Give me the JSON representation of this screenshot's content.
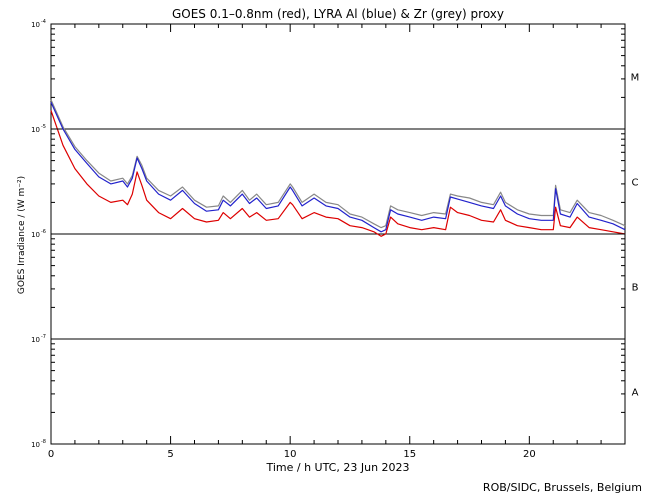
{
  "chart_data": {
    "type": "line",
    "title": "GOES 0.1–0.8nm (red), LYRA Al (blue) & Zr (grey) proxy",
    "xlabel": "Time / h UTC, 23 Jun 2023",
    "ylabel": "GOES Irradiance / (W m⁻²)",
    "xlim": [
      0,
      24
    ],
    "ylim": [
      1e-08,
      0.0001
    ],
    "yscale": "log",
    "x_ticks": [
      0,
      5,
      10,
      15,
      20
    ],
    "y_ticks": [
      {
        "value": 1e-08,
        "label": "10",
        "exp": "-8"
      },
      {
        "value": 1e-07,
        "label": "10",
        "exp": "-7"
      },
      {
        "value": 1e-06,
        "label": "10",
        "exp": "-6"
      },
      {
        "value": 1e-05,
        "label": "10",
        "exp": "-5"
      },
      {
        "value": 0.0001,
        "label": "10",
        "exp": "-4"
      }
    ],
    "flare_class_lines": [
      1e-07,
      1e-06,
      1e-05
    ],
    "flare_classes": [
      {
        "label": "A",
        "value": 3.16e-08
      },
      {
        "label": "B",
        "value": 3.16e-07
      },
      {
        "label": "C",
        "value": 3.16e-06
      },
      {
        "label": "M",
        "value": 3.16e-05
      }
    ],
    "series": [
      {
        "name": "LYRA Zr proxy",
        "color": "#888888",
        "x": [
          0,
          0.5,
          1,
          1.5,
          2,
          2.5,
          3,
          3.2,
          3.4,
          3.6,
          3.8,
          4,
          4.5,
          5,
          5.5,
          6,
          6.5,
          7,
          7.2,
          7.5,
          8,
          8.3,
          8.6,
          9,
          9.5,
          10,
          10.1,
          10.5,
          11,
          11.5,
          12,
          12.5,
          13,
          13.5,
          13.8,
          14,
          14.2,
          14.5,
          15,
          15.5,
          16,
          16.5,
          16.7,
          17,
          17.5,
          18,
          18.5,
          18.8,
          19,
          19.5,
          20,
          20.5,
          21,
          21.1,
          21.3,
          21.7,
          22,
          22.5,
          23,
          23.5,
          24
        ],
        "values": [
          1.9e-05,
          1.05e-05,
          6.8e-06,
          5e-06,
          3.8e-06,
          3.2e-06,
          3.4e-06,
          3e-06,
          3.6e-06,
          5.5e-06,
          4.5e-06,
          3.4e-06,
          2.6e-06,
          2.3e-06,
          2.8e-06,
          2.1e-06,
          1.8e-06,
          1.85e-06,
          2.3e-06,
          2e-06,
          2.6e-06,
          2.1e-06,
          2.4e-06,
          1.9e-06,
          2e-06,
          3e-06,
          2.8e-06,
          2e-06,
          2.4e-06,
          2e-06,
          1.9e-06,
          1.55e-06,
          1.45e-06,
          1.25e-06,
          1.15e-06,
          1.2e-06,
          1.85e-06,
          1.7e-06,
          1.6e-06,
          1.5e-06,
          1.6e-06,
          1.55e-06,
          2.4e-06,
          2.3e-06,
          2.2e-06,
          2e-06,
          1.9e-06,
          2.5e-06,
          2e-06,
          1.7e-06,
          1.55e-06,
          1.5e-06,
          1.5e-06,
          2.9e-06,
          1.7e-06,
          1.6e-06,
          2.1e-06,
          1.6e-06,
          1.5e-06,
          1.35e-06,
          1.2e-06
        ]
      },
      {
        "name": "LYRA Al proxy",
        "color": "#2222cc",
        "x": [
          0,
          0.5,
          1,
          1.5,
          2,
          2.5,
          3,
          3.2,
          3.4,
          3.6,
          3.8,
          4,
          4.5,
          5,
          5.5,
          6,
          6.5,
          7,
          7.2,
          7.5,
          8,
          8.3,
          8.6,
          9,
          9.5,
          10,
          10.1,
          10.5,
          11,
          11.5,
          12,
          12.5,
          13,
          13.5,
          13.8,
          14,
          14.2,
          14.5,
          15,
          15.5,
          16,
          16.5,
          16.7,
          17,
          17.5,
          18,
          18.5,
          18.8,
          19,
          19.5,
          20,
          20.5,
          21,
          21.1,
          21.3,
          21.7,
          22,
          22.5,
          23,
          23.5,
          24
        ],
        "values": [
          1.8e-05,
          1e-05,
          6.4e-06,
          4.7e-06,
          3.5e-06,
          3e-06,
          3.2e-06,
          2.8e-06,
          3.4e-06,
          5.3e-06,
          4.2e-06,
          3.2e-06,
          2.4e-06,
          2.1e-06,
          2.6e-06,
          1.95e-06,
          1.65e-06,
          1.7e-06,
          2.1e-06,
          1.85e-06,
          2.4e-06,
          1.95e-06,
          2.2e-06,
          1.75e-06,
          1.85e-06,
          2.8e-06,
          2.6e-06,
          1.85e-06,
          2.2e-06,
          1.85e-06,
          1.75e-06,
          1.45e-06,
          1.35e-06,
          1.15e-06,
          1.05e-06,
          1.1e-06,
          1.7e-06,
          1.55e-06,
          1.45e-06,
          1.35e-06,
          1.45e-06,
          1.4e-06,
          2.25e-06,
          2.15e-06,
          2e-06,
          1.85e-06,
          1.75e-06,
          2.3e-06,
          1.85e-06,
          1.55e-06,
          1.4e-06,
          1.35e-06,
          1.35e-06,
          2.7e-06,
          1.55e-06,
          1.45e-06,
          1.95e-06,
          1.45e-06,
          1.35e-06,
          1.25e-06,
          1.1e-06
        ]
      },
      {
        "name": "GOES 0.1–0.8nm",
        "color": "#dd0000",
        "x": [
          0,
          0.5,
          1,
          1.5,
          2,
          2.5,
          3,
          3.2,
          3.4,
          3.6,
          3.8,
          4,
          4.5,
          5,
          5.5,
          6,
          6.5,
          7,
          7.2,
          7.5,
          8,
          8.3,
          8.6,
          9,
          9.5,
          10,
          10.1,
          10.5,
          11,
          11.5,
          12,
          12.5,
          13,
          13.5,
          13.8,
          14,
          14.2,
          14.5,
          15,
          15.5,
          16,
          16.5,
          16.7,
          17,
          17.5,
          18,
          18.5,
          18.8,
          19,
          19.5,
          20,
          20.5,
          21,
          21.1,
          21.3,
          21.7,
          22,
          22.5,
          23,
          23.5,
          24
        ],
        "values": [
          1.5e-05,
          7e-06,
          4.2e-06,
          3e-06,
          2.3e-06,
          2e-06,
          2.1e-06,
          1.9e-06,
          2.4e-06,
          3.9e-06,
          2.9e-06,
          2.1e-06,
          1.6e-06,
          1.4e-06,
          1.75e-06,
          1.4e-06,
          1.3e-06,
          1.35e-06,
          1.6e-06,
          1.4e-06,
          1.75e-06,
          1.45e-06,
          1.6e-06,
          1.35e-06,
          1.4e-06,
          2e-06,
          1.9e-06,
          1.4e-06,
          1.6e-06,
          1.45e-06,
          1.4e-06,
          1.2e-06,
          1.15e-06,
          1.05e-06,
          9.5e-07,
          1e-06,
          1.45e-06,
          1.25e-06,
          1.15e-06,
          1.1e-06,
          1.15e-06,
          1.1e-06,
          1.8e-06,
          1.6e-06,
          1.5e-06,
          1.35e-06,
          1.3e-06,
          1.7e-06,
          1.35e-06,
          1.2e-06,
          1.15e-06,
          1.1e-06,
          1.1e-06,
          1.8e-06,
          1.2e-06,
          1.15e-06,
          1.45e-06,
          1.15e-06,
          1.1e-06,
          1.05e-06,
          1e-06
        ]
      }
    ]
  },
  "credit": "ROB/SIDC, Brussels, Belgium"
}
